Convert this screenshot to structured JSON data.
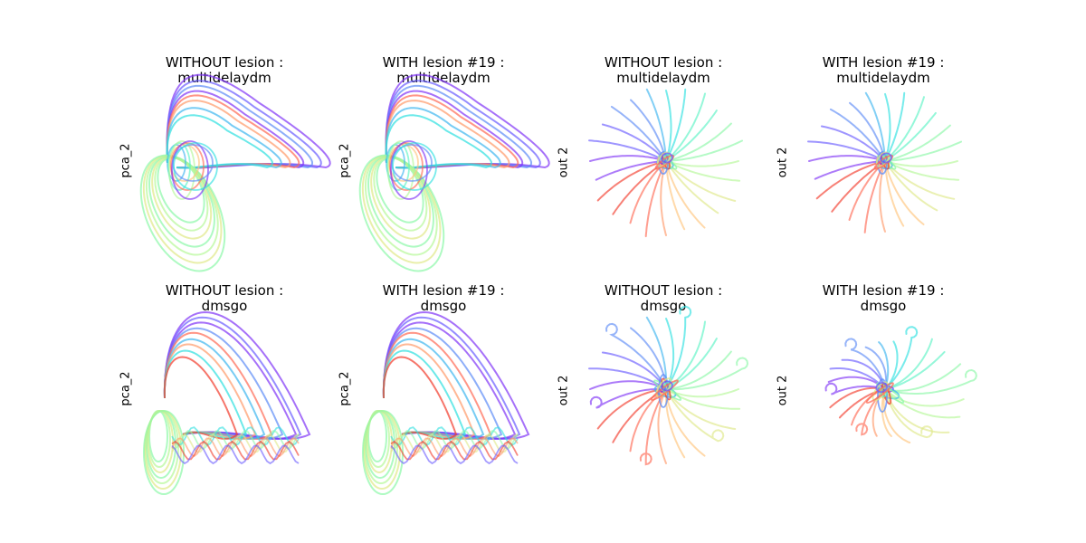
{
  "chart_data": [
    {
      "type": "line",
      "kind": "pca",
      "title_line1": "WITHOUT lesion :",
      "title_line2": "multidelaydm",
      "ylabel": "pca_2",
      "task": "multidelaydm",
      "lesion": false
    },
    {
      "type": "line",
      "kind": "pca",
      "title_line1": "WITH lesion #19 :",
      "title_line2": "multidelaydm",
      "ylabel": "pca_2",
      "task": "multidelaydm",
      "lesion": true
    },
    {
      "type": "line",
      "kind": "out",
      "title_line1": "WITHOUT lesion :",
      "title_line2": "multidelaydm",
      "ylabel": "out 2",
      "task": "multidelaydm",
      "lesion": false
    },
    {
      "type": "line",
      "kind": "out",
      "title_line1": "WITH lesion #19 :",
      "title_line2": "multidelaydm",
      "ylabel": "out 2",
      "task": "multidelaydm",
      "lesion": true
    },
    {
      "type": "line",
      "kind": "pca",
      "title_line1": "WITHOUT lesion :",
      "title_line2": "dmsgo",
      "ylabel": "pca_2",
      "task": "dmsgo",
      "lesion": false
    },
    {
      "type": "line",
      "kind": "pca",
      "title_line1": "WITH lesion #19 :",
      "title_line2": "dmsgo",
      "ylabel": "pca_2",
      "task": "dmsgo",
      "lesion": true
    },
    {
      "type": "line",
      "kind": "out",
      "title_line1": "WITHOUT lesion :",
      "title_line2": "dmsgo",
      "ylabel": "out 2",
      "task": "dmsgo",
      "lesion": false
    },
    {
      "type": "line",
      "kind": "out",
      "title_line1": "WITH lesion #19 :",
      "title_line2": "dmsgo",
      "ylabel": "out 2",
      "task": "dmsgo",
      "lesion": true
    }
  ],
  "colors": {
    "rainbow": [
      "#8034f6",
      "#6a5cff",
      "#5d8cf6",
      "#3fb6f0",
      "#2ee0e0",
      "#5cf2c4",
      "#8cf8a8",
      "#b6f898",
      "#dfe888",
      "#ffc47c",
      "#ff9a6a",
      "#ff6a54",
      "#f23c2c"
    ]
  }
}
